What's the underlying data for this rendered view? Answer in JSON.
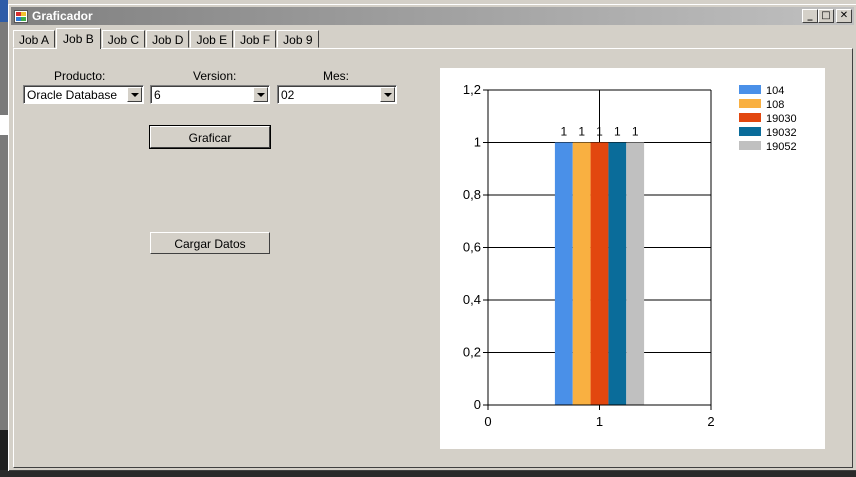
{
  "window": {
    "title": "Graficador",
    "minimize_glyph": "_",
    "maximize_glyph": "□",
    "close_glyph": "✕"
  },
  "tabs": [
    {
      "label": "Job A",
      "active": false
    },
    {
      "label": "Job B",
      "active": true
    },
    {
      "label": "Job C",
      "active": false
    },
    {
      "label": "Job D",
      "active": false
    },
    {
      "label": "Job E",
      "active": false
    },
    {
      "label": "Job F",
      "active": false
    },
    {
      "label": "Job 9",
      "active": false
    }
  ],
  "form": {
    "producto": {
      "label": "Producto:",
      "value": "Oracle Database"
    },
    "version": {
      "label": "Version:",
      "value": "6"
    },
    "mes": {
      "label": "Mes:",
      "value": "02"
    },
    "graficar_label": "Graficar",
    "cargar_label": "Cargar Datos"
  },
  "chart_data": {
    "type": "bar",
    "x_ticks": [
      "0",
      "1",
      "2"
    ],
    "xlim": [
      0,
      2
    ],
    "y_ticks": [
      "0",
      "0,2",
      "0,4",
      "0,6",
      "0,8",
      "1",
      "1,2"
    ],
    "ylim": [
      0,
      1.2
    ],
    "grid": true,
    "legend_position": "top-right",
    "series": [
      {
        "name": "104",
        "value": 1,
        "label": "1",
        "color": "#4a90e8"
      },
      {
        "name": "108",
        "value": 1,
        "label": "1",
        "color": "#f9b041"
      },
      {
        "name": "19030",
        "value": 1,
        "label": "1",
        "color": "#e2470f"
      },
      {
        "name": "19032",
        "value": 1,
        "label": "1",
        "color": "#0a6c9a"
      },
      {
        "name": "19052",
        "value": 1,
        "label": "1",
        "color": "#c0c0c0"
      }
    ]
  }
}
